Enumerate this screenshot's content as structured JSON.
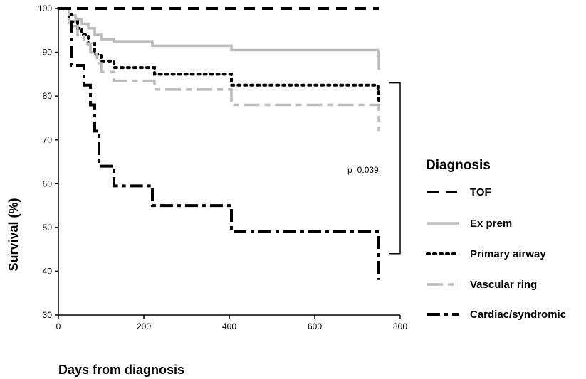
{
  "chart_data": {
    "type": "line",
    "step": true,
    "xlabel": "Days from diagnosis",
    "ylabel": "Survival (%)",
    "xlim": [
      0,
      800
    ],
    "ylim": [
      30,
      100
    ],
    "xticks": [
      "0",
      "200",
      "400",
      "600",
      "800"
    ],
    "yticks": [
      "30",
      "40",
      "50",
      "60",
      "70",
      "80",
      "90",
      "100"
    ],
    "grid": false,
    "legend": {
      "title": "Diagnosis",
      "placement": "right"
    },
    "annotations": [
      {
        "text": "p=0.039",
        "type": "bracket",
        "spans_y": [
          44,
          83
        ],
        "at_x": 800
      }
    ],
    "series": [
      {
        "name": "TOF",
        "color": "#000000",
        "dash": "dashed",
        "x": [
          0,
          750
        ],
        "y": [
          100,
          100
        ]
      },
      {
        "name": "Ex prem",
        "color": "#bbbbbb",
        "dash": "solid",
        "x": [
          0,
          25,
          40,
          55,
          70,
          85,
          100,
          130,
          220,
          405,
          748,
          750
        ],
        "y": [
          100,
          98.5,
          97.5,
          96.5,
          95.5,
          94,
          93,
          92.5,
          91.5,
          90.5,
          90,
          86
        ]
      },
      {
        "name": "Primary airway",
        "color": "#000000",
        "dash": "dotted",
        "x": [
          0,
          25,
          45,
          55,
          70,
          85,
          100,
          130,
          225,
          405,
          748,
          750
        ],
        "y": [
          100,
          97,
          95.5,
          94,
          92,
          89.5,
          88,
          86.5,
          85,
          82.5,
          81.5,
          79
        ]
      },
      {
        "name": "Vascular ring",
        "color": "#bbbbbb",
        "dash": "dashdot",
        "x": [
          0,
          25,
          45,
          60,
          75,
          90,
          100,
          130,
          225,
          405,
          748,
          750
        ],
        "y": [
          100,
          96,
          94,
          92,
          90,
          87.5,
          85.5,
          83.5,
          81.5,
          78,
          78,
          72
        ]
      },
      {
        "name": "Cardiac/syndromic",
        "color": "#000000",
        "dash": "dashdot",
        "x": [
          0,
          30,
          60,
          75,
          85,
          95,
          130,
          220,
          405,
          748,
          750
        ],
        "y": [
          100,
          87,
          82.5,
          78,
          72,
          64,
          59.5,
          55,
          49,
          49,
          38
        ]
      }
    ]
  }
}
